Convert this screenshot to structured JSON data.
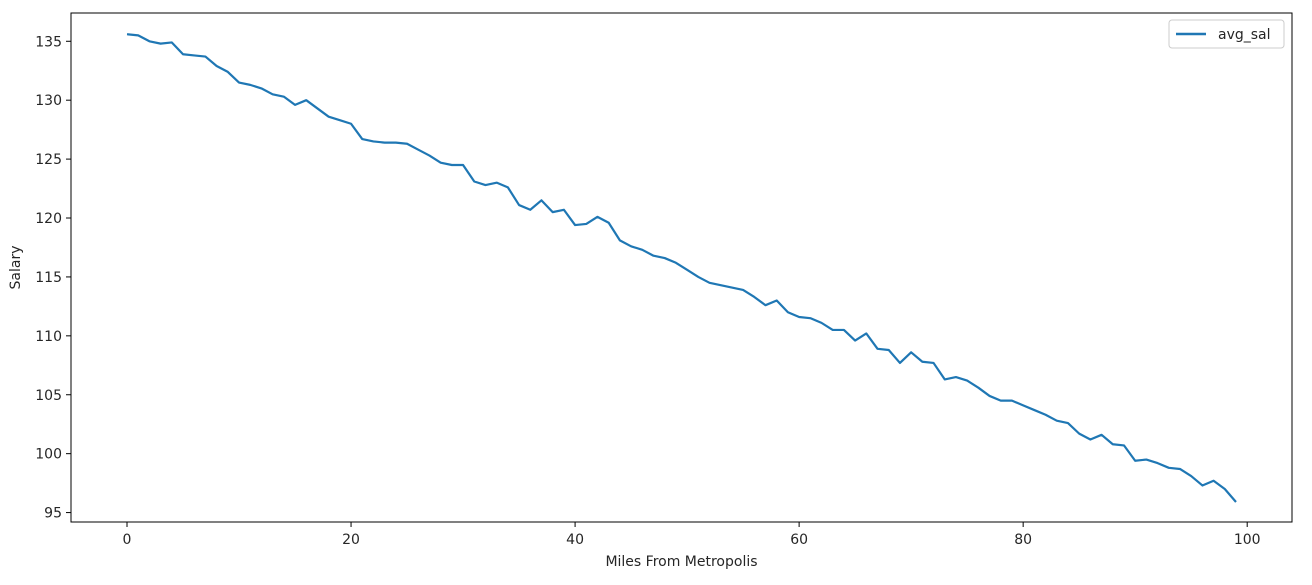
{
  "chart_data": {
    "type": "line",
    "title": "",
    "xlabel": "Miles From Metropolis",
    "ylabel": "Salary",
    "xlim": [
      -5,
      104
    ],
    "ylim": [
      94.2,
      137.4
    ],
    "xticks": [
      0,
      20,
      40,
      60,
      80,
      100
    ],
    "yticks": [
      95,
      100,
      105,
      110,
      115,
      120,
      125,
      130,
      135
    ],
    "grid": false,
    "legend_position": "top-right",
    "series": [
      {
        "name": "avg_sal",
        "color": "#1f77b4",
        "x": [
          0,
          1,
          2,
          3,
          4,
          5,
          6,
          7,
          8,
          9,
          10,
          11,
          12,
          13,
          14,
          15,
          16,
          17,
          18,
          19,
          20,
          21,
          22,
          23,
          24,
          25,
          26,
          27,
          28,
          29,
          30,
          31,
          32,
          33,
          34,
          35,
          36,
          37,
          38,
          39,
          40,
          41,
          42,
          43,
          44,
          45,
          46,
          47,
          48,
          49,
          50,
          51,
          52,
          53,
          54,
          55,
          56,
          57,
          58,
          59,
          60,
          61,
          62,
          63,
          64,
          65,
          66,
          67,
          68,
          69,
          70,
          71,
          72,
          73,
          74,
          75,
          76,
          77,
          78,
          79,
          80,
          81,
          82,
          83,
          84,
          85,
          86,
          87,
          88,
          89,
          90,
          91,
          92,
          93,
          94,
          95,
          96,
          97,
          98,
          99
        ],
        "values": [
          135.6,
          135.5,
          135.0,
          134.8,
          134.9,
          133.9,
          133.8,
          133.7,
          132.9,
          132.4,
          131.5,
          131.3,
          131.0,
          130.5,
          130.3,
          129.6,
          130.0,
          129.3,
          128.6,
          128.3,
          128.0,
          126.7,
          126.5,
          126.4,
          126.4,
          126.3,
          125.8,
          125.3,
          124.7,
          124.5,
          124.5,
          123.1,
          122.8,
          123.0,
          122.6,
          121.1,
          120.7,
          121.5,
          120.5,
          120.7,
          119.4,
          119.5,
          120.1,
          119.6,
          118.1,
          117.6,
          117.3,
          116.8,
          116.6,
          116.2,
          115.6,
          115.0,
          114.5,
          114.3,
          114.1,
          113.9,
          113.3,
          112.6,
          113.0,
          112.0,
          111.6,
          111.5,
          111.1,
          110.5,
          110.5,
          109.6,
          110.2,
          108.9,
          108.8,
          107.7,
          108.6,
          107.8,
          107.7,
          106.3,
          106.5,
          106.2,
          105.6,
          104.9,
          104.5,
          104.5,
          104.1,
          103.7,
          103.3,
          102.8,
          102.6,
          101.7,
          101.2,
          101.6,
          100.8,
          100.7,
          99.4,
          99.5,
          99.2,
          98.8,
          98.7,
          98.1,
          97.3,
          97.7,
          97.0,
          95.9
        ]
      }
    ]
  }
}
